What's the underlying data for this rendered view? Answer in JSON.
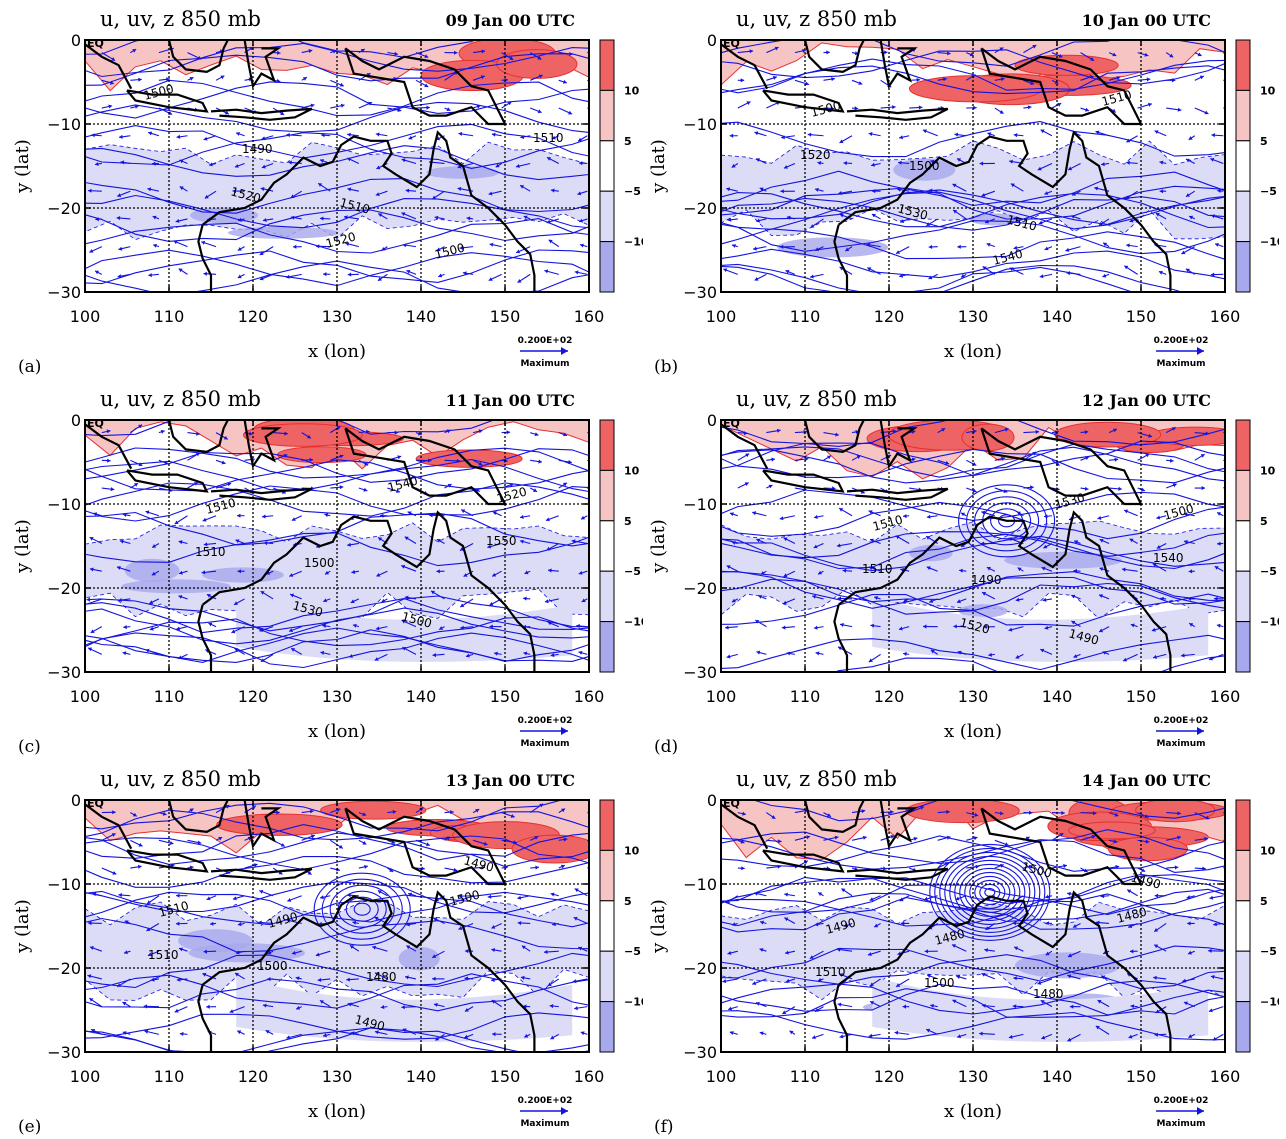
{
  "figure": {
    "panels": [
      {
        "letter": "(a)",
        "title": "u, uv, z 850 mb",
        "date": "09 Jan 00 UTC",
        "contour_labels": [
          "1500",
          "1490",
          "1510",
          "1500",
          "1510",
          "1520",
          "1520"
        ]
      },
      {
        "letter": "(b)",
        "title": "u, uv, z 850 mb",
        "date": "10 Jan 00 UTC",
        "contour_labels": [
          "1500",
          "1500",
          "1510",
          "1510",
          "1520",
          "1530",
          "1540"
        ]
      },
      {
        "letter": "(c)",
        "title": "u, uv, z 850 mb",
        "date": "11 Jan 00 UTC",
        "contour_labels": [
          "1510",
          "1500",
          "1500",
          "1520",
          "1510",
          "1530",
          "1540",
          "1550"
        ]
      },
      {
        "letter": "(d)",
        "title": "u, uv, z 850 mb",
        "date": "12 Jan 00 UTC",
        "contour_labels": [
          "1510",
          "1490",
          "1490",
          "1500",
          "1510",
          "1520",
          "1530",
          "1540"
        ]
      },
      {
        "letter": "(e)",
        "title": "u, uv, z 850 mb",
        "date": "13 Jan 00 UTC",
        "contour_labels": [
          "1490",
          "1480",
          "1490",
          "1510",
          "1500",
          "1490",
          "1500",
          "1510"
        ]
      },
      {
        "letter": "(f)",
        "title": "u, uv, z 850 mb",
        "date": "14 Jan 00 UTC",
        "contour_labels": [
          "1480",
          "1480",
          "1490",
          "1490",
          "1500",
          "1500",
          "1480",
          "1510"
        ]
      }
    ],
    "x_axis": {
      "label": "x (lon)",
      "ticks": [
        "100",
        "110",
        "120",
        "130",
        "140",
        "150",
        "160"
      ]
    },
    "y_axis": {
      "label": "y (lat)",
      "ticks": [
        "0",
        "−10",
        "−20",
        "−30"
      ],
      "eq_label": "EQ"
    },
    "colorbar": {
      "labels": [
        "10",
        "5",
        "−5",
        "−10"
      ],
      "colors": [
        "#ee6464",
        "#f7c4c4",
        "#ffffff",
        "#dcdcf7",
        "#a8a8ec"
      ]
    },
    "vector_reference": {
      "value": "0.200E+02",
      "caption": "Maximum"
    },
    "colors": {
      "positive": "#ee6464",
      "negative": "#a8a8ec",
      "streamline": "#1414e0",
      "coast": "#000000"
    }
  }
}
